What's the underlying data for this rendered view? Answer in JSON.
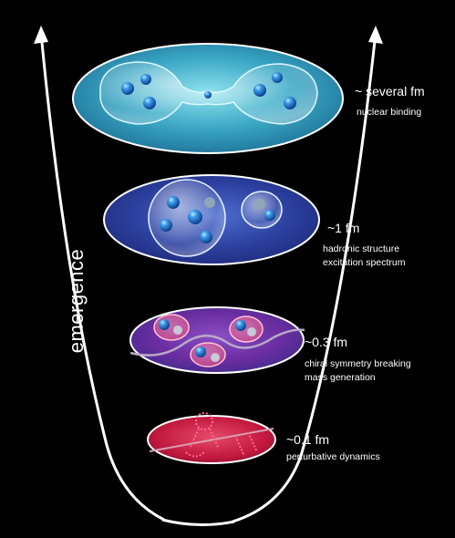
{
  "axis_label": "emergence",
  "levels": [
    {
      "scale": "~ several fm",
      "descriptions": [
        "nuclear binding"
      ]
    },
    {
      "scale": "~1 fm",
      "descriptions": [
        "hadronic structure",
        "excitation spectrum"
      ]
    },
    {
      "scale": "~0.3 fm",
      "descriptions": [
        "chiral symmetry breaking",
        "mass generation"
      ]
    },
    {
      "scale": "~0.1 fm",
      "descriptions": [
        "perturbative dynamics"
      ]
    }
  ],
  "colors": {
    "background": "#000000",
    "funnel": "#ffffff",
    "level1": "#3aa6c4",
    "level2": "#2b3f9e",
    "level3": "#6a2da0",
    "level4": "#c2183e",
    "particle": "#1f7fd6"
  }
}
